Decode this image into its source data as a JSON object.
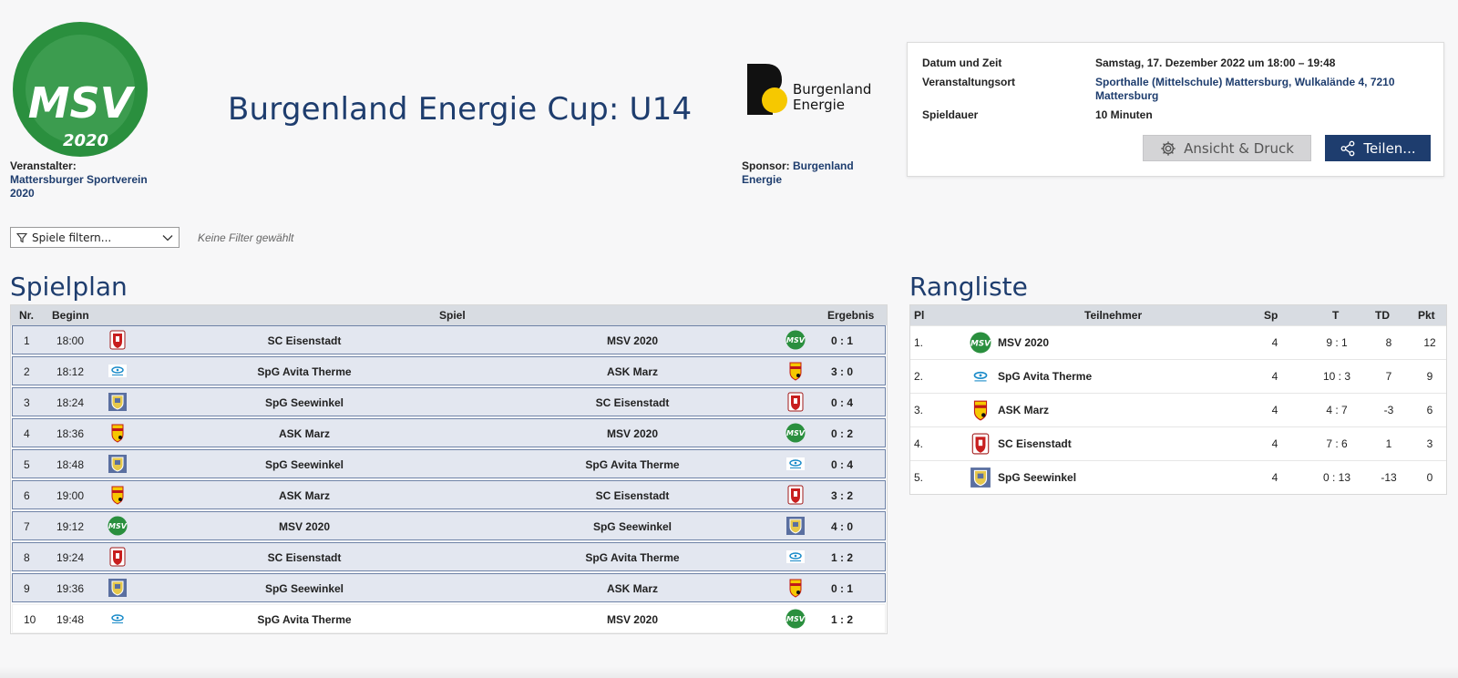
{
  "organizer": {
    "label": "Veranstalter:",
    "name": "Mattersburger Sportverein 2020",
    "logo_text": "MSV",
    "logo_year": "2020"
  },
  "title": "Burgenland Energie Cup: U14",
  "sponsor": {
    "logo_text_1": "Burgenland",
    "logo_text_2": "Energie",
    "label": "Sponsor:",
    "name": "Burgenland Energie"
  },
  "info": {
    "date_label": "Datum und Zeit",
    "date_value": "Samstag, 17. Dezember 2022 um 18:00 – 19:48",
    "venue_label": "Veranstaltungsort",
    "venue_value": "Sporthalle (Mittelschule) Mattersburg, Wulkalände 4, 7210 Mattersburg",
    "duration_label": "Spieldauer",
    "duration_value": "10 Minuten",
    "print_label": "Ansicht & Druck",
    "share_label": "Teilen..."
  },
  "filter": {
    "label": "Spiele filtern...",
    "note": "Keine Filter gewählt"
  },
  "schedule": {
    "heading": "Spielplan",
    "columns": {
      "nr": "Nr.",
      "begin": "Beginn",
      "game": "Spiel",
      "result": "Ergebnis"
    },
    "rows": [
      {
        "nr": "1",
        "time": "18:00",
        "home": "SC Eisenstadt",
        "away": "MSV 2020",
        "result": "0 : 1"
      },
      {
        "nr": "2",
        "time": "18:12",
        "home": "SpG Avita Therme",
        "away": "ASK Marz",
        "result": "3 : 0"
      },
      {
        "nr": "3",
        "time": "18:24",
        "home": "SpG Seewinkel",
        "away": "SC Eisenstadt",
        "result": "0 : 4"
      },
      {
        "nr": "4",
        "time": "18:36",
        "home": "ASK Marz",
        "away": "MSV 2020",
        "result": "0 : 2"
      },
      {
        "nr": "5",
        "time": "18:48",
        "home": "SpG Seewinkel",
        "away": "SpG Avita Therme",
        "result": "0 : 4"
      },
      {
        "nr": "6",
        "time": "19:00",
        "home": "ASK Marz",
        "away": "SC Eisenstadt",
        "result": "3 : 2"
      },
      {
        "nr": "7",
        "time": "19:12",
        "home": "MSV 2020",
        "away": "SpG Seewinkel",
        "result": "4 : 0"
      },
      {
        "nr": "8",
        "time": "19:24",
        "home": "SC Eisenstadt",
        "away": "SpG Avita Therme",
        "result": "1 : 2"
      },
      {
        "nr": "9",
        "time": "19:36",
        "home": "SpG Seewinkel",
        "away": "ASK Marz",
        "result": "0 : 1"
      },
      {
        "nr": "10",
        "time": "19:48",
        "home": "SpG Avita Therme",
        "away": "MSV 2020",
        "result": "1 : 2"
      }
    ]
  },
  "ranking": {
    "heading": "Rangliste",
    "columns": {
      "pl": "Pl",
      "team": "Teilnehmer",
      "sp": "Sp",
      "t": "T",
      "td": "TD",
      "pkt": "Pkt"
    },
    "rows": [
      {
        "pl": "1.",
        "team": "MSV 2020",
        "sp": "4",
        "t": "9 : 1",
        "td": "8",
        "pkt": "12"
      },
      {
        "pl": "2.",
        "team": "SpG Avita Therme",
        "sp": "4",
        "t": "10 : 3",
        "td": "7",
        "pkt": "9"
      },
      {
        "pl": "3.",
        "team": "ASK Marz",
        "sp": "4",
        "t": "4 : 7",
        "td": "-3",
        "pkt": "6"
      },
      {
        "pl": "4.",
        "team": "SC Eisenstadt",
        "sp": "4",
        "t": "7 : 6",
        "td": "1",
        "pkt": "3"
      },
      {
        "pl": "5.",
        "team": "SpG Seewinkel",
        "sp": "4",
        "t": "0 : 13",
        "td": "-13",
        "pkt": "0"
      }
    ]
  }
}
